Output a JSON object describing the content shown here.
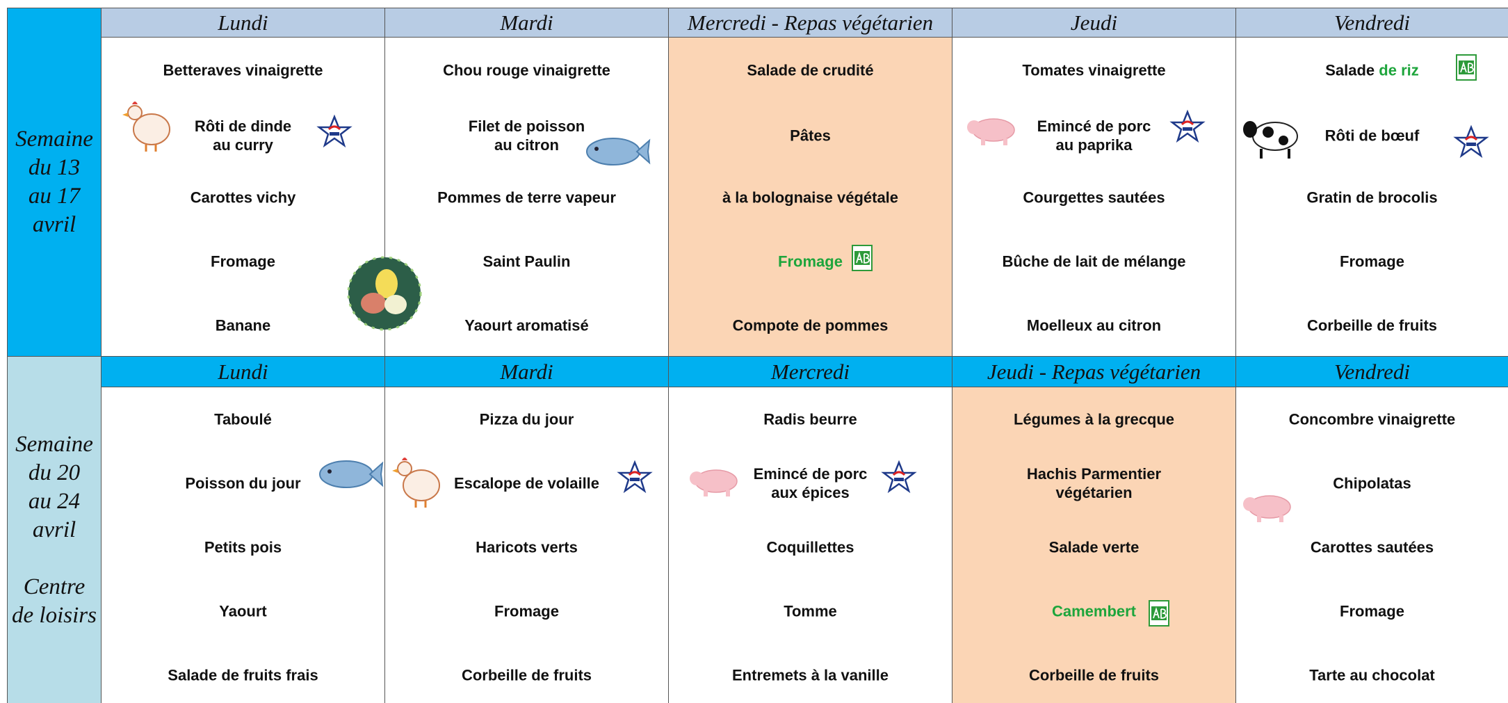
{
  "weeks": [
    {
      "label": [
        "Semaine",
        "du 13",
        "au 17",
        "avril"
      ],
      "label_color": "#00b0f0",
      "header_color": "#b8cce4",
      "days": [
        {
          "name": "Lundi",
          "items": [
            {
              "lines": [
                "Betteraves vinaigrette"
              ]
            },
            {
              "lines": [
                "Rôti de dinde",
                "au curry"
              ]
            },
            {
              "lines": [
                "Carottes vichy"
              ]
            },
            {
              "lines": [
                "Fromage"
              ]
            },
            {
              "lines": [
                "Banane"
              ]
            }
          ]
        },
        {
          "name": "Mardi",
          "items": [
            {
              "lines": [
                "Chou rouge vinaigrette"
              ]
            },
            {
              "lines": [
                "Filet de poisson",
                "au citron"
              ]
            },
            {
              "lines": [
                "Pommes de terre vapeur"
              ]
            },
            {
              "lines": [
                "Saint Paulin"
              ]
            },
            {
              "lines": [
                "Yaourt aromatisé"
              ]
            }
          ]
        },
        {
          "name": "Mercredi - Repas végétarien",
          "veg": true,
          "items": [
            {
              "lines": [
                "Salade de crudité"
              ]
            },
            {
              "lines": [
                "Pâtes"
              ]
            },
            {
              "lines": [
                "à la bolognaise végétale"
              ]
            },
            {
              "lines": [
                "Fromage"
              ],
              "green": true
            },
            {
              "lines": [
                "Compote de pommes"
              ]
            }
          ]
        },
        {
          "name": "Jeudi",
          "items": [
            {
              "lines": [
                "Tomates vinaigrette"
              ]
            },
            {
              "lines": [
                "Emincé de porc",
                "au paprika"
              ]
            },
            {
              "lines": [
                "Courgettes sautées"
              ]
            },
            {
              "lines": [
                "Bûche de lait de mélange"
              ]
            },
            {
              "lines": [
                "Moelleux au citron"
              ]
            }
          ]
        },
        {
          "name": "Vendredi",
          "items": [
            {
              "lines": [
                "Salade"
              ],
              "green_text": "de riz"
            },
            {
              "lines": [
                "Rôti de bœuf"
              ]
            },
            {
              "lines": [
                "Gratin de brocolis"
              ]
            },
            {
              "lines": [
                "Fromage"
              ]
            },
            {
              "lines": [
                "Corbeille de fruits"
              ]
            }
          ]
        }
      ]
    },
    {
      "label": [
        "Semaine",
        "du 20",
        "au 24",
        "avril",
        "",
        "Centre",
        "de loisirs"
      ],
      "label_color": "#b7dde8",
      "header_color": "#00b0f0",
      "days": [
        {
          "name": "Lundi",
          "items": [
            {
              "lines": [
                "Taboulé"
              ]
            },
            {
              "lines": [
                "Poisson du jour"
              ]
            },
            {
              "lines": [
                "Petits pois"
              ]
            },
            {
              "lines": [
                "Yaourt"
              ]
            },
            {
              "lines": [
                "Salade de fruits frais"
              ]
            }
          ]
        },
        {
          "name": "Mardi",
          "items": [
            {
              "lines": [
                "Pizza du jour"
              ]
            },
            {
              "lines": [
                "Escalope de volaille"
              ]
            },
            {
              "lines": [
                "Haricots verts"
              ]
            },
            {
              "lines": [
                "Fromage"
              ]
            },
            {
              "lines": [
                "Corbeille de fruits"
              ]
            }
          ]
        },
        {
          "name": "Mercredi",
          "items": [
            {
              "lines": [
                "Radis beurre"
              ]
            },
            {
              "lines": [
                "Emincé de porc",
                "aux épices"
              ]
            },
            {
              "lines": [
                "Coquillettes"
              ]
            },
            {
              "lines": [
                "Tomme"
              ]
            },
            {
              "lines": [
                "Entremets à la vanille"
              ]
            }
          ]
        },
        {
          "name": "Jeudi - Repas végétarien",
          "veg": true,
          "items": [
            {
              "lines": [
                "Légumes à la grecque"
              ]
            },
            {
              "lines": [
                "Hachis Parmentier",
                "végétarien"
              ]
            },
            {
              "lines": [
                "Salade verte"
              ]
            },
            {
              "lines": [
                "Camembert"
              ],
              "green": true
            },
            {
              "lines": [
                "Corbeille de fruits"
              ]
            }
          ]
        },
        {
          "name": "Vendredi",
          "items": [
            {
              "lines": [
                "Concombre vinaigrette"
              ]
            },
            {
              "lines": [
                "Chipolatas"
              ]
            },
            {
              "lines": [
                "Carottes sautées"
              ]
            },
            {
              "lines": [
                "Fromage"
              ]
            },
            {
              "lines": [
                "Tarte au chocolat"
              ]
            }
          ]
        }
      ]
    }
  ]
}
